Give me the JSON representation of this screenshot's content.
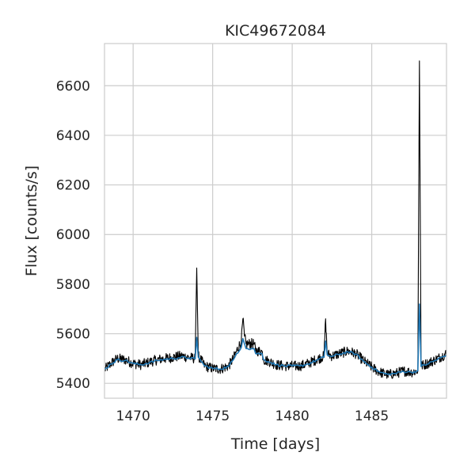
{
  "chart_data": {
    "type": "line",
    "title": "KIC49672084",
    "xlabel": "Time [days]",
    "ylabel": "Flux [counts/s]",
    "xlim": [
      1468.2,
      1489.7
    ],
    "ylim": [
      5340,
      6770
    ],
    "xticks": [
      1470,
      1475,
      1480,
      1485
    ],
    "yticks": [
      5400,
      5600,
      5800,
      6000,
      6200,
      6400,
      6600
    ],
    "grid": true,
    "legend": "none",
    "series": [
      {
        "style": "noisy-line",
        "color": "#000000",
        "x": [
          1468.2,
          1468.6,
          1469.0,
          1469.5,
          1470.0,
          1470.5,
          1471.0,
          1471.5,
          1472.0,
          1472.5,
          1473.0,
          1473.5,
          1473.9,
          1474.0,
          1474.1,
          1474.5,
          1475.0,
          1475.5,
          1476.0,
          1476.3,
          1476.5,
          1476.8,
          1476.9,
          1477.0,
          1477.1,
          1477.2,
          1477.6,
          1477.7,
          1478.1,
          1478.2,
          1478.5,
          1479.0,
          1479.5,
          1480.0,
          1480.5,
          1481.0,
          1481.5,
          1482.0,
          1482.1,
          1482.2,
          1482.5,
          1483.0,
          1483.5,
          1484.0,
          1484.5,
          1485.0,
          1485.5,
          1486.0,
          1486.5,
          1487.0,
          1487.5,
          1487.9,
          1488.0,
          1488.1,
          1488.5,
          1489.0,
          1489.7
        ],
        "y": [
          5455,
          5480,
          5500,
          5495,
          5480,
          5475,
          5485,
          5495,
          5500,
          5505,
          5510,
          5505,
          5500,
          5865,
          5510,
          5470,
          5460,
          5458,
          5470,
          5500,
          5530,
          5570,
          5660,
          5590,
          5560,
          5560,
          5560,
          5530,
          5530,
          5495,
          5490,
          5475,
          5470,
          5470,
          5470,
          5480,
          5495,
          5510,
          5660,
          5520,
          5510,
          5520,
          5530,
          5520,
          5490,
          5465,
          5445,
          5435,
          5440,
          5450,
          5445,
          5450,
          6700,
          5470,
          5480,
          5495,
          5520
        ]
      },
      {
        "style": "smoothed-line",
        "color": "#1f77b4",
        "x": [
          1468.2,
          1468.6,
          1469.0,
          1469.5,
          1470.0,
          1470.5,
          1471.0,
          1471.5,
          1472.0,
          1472.5,
          1473.0,
          1473.5,
          1473.9,
          1474.0,
          1474.1,
          1474.5,
          1475.0,
          1475.5,
          1476.0,
          1476.3,
          1476.5,
          1476.8,
          1476.9,
          1477.0,
          1477.1,
          1477.2,
          1477.6,
          1477.7,
          1478.1,
          1478.2,
          1478.5,
          1479.0,
          1479.5,
          1480.0,
          1480.5,
          1481.0,
          1481.5,
          1482.0,
          1482.1,
          1482.2,
          1482.5,
          1483.0,
          1483.5,
          1484.0,
          1484.5,
          1485.0,
          1485.5,
          1486.0,
          1486.5,
          1487.0,
          1487.5,
          1487.9,
          1488.0,
          1488.1,
          1488.5,
          1489.0,
          1489.7
        ],
        "y": [
          5455,
          5478,
          5495,
          5492,
          5480,
          5475,
          5483,
          5492,
          5497,
          5500,
          5505,
          5502,
          5498,
          5585,
          5505,
          5470,
          5460,
          5458,
          5468,
          5495,
          5520,
          5545,
          5580,
          5560,
          5540,
          5540,
          5540,
          5520,
          5520,
          5495,
          5488,
          5475,
          5470,
          5470,
          5470,
          5478,
          5492,
          5505,
          5570,
          5515,
          5508,
          5518,
          5527,
          5518,
          5488,
          5465,
          5445,
          5436,
          5440,
          5448,
          5445,
          5450,
          5720,
          5468,
          5478,
          5492,
          5515
        ]
      }
    ]
  }
}
